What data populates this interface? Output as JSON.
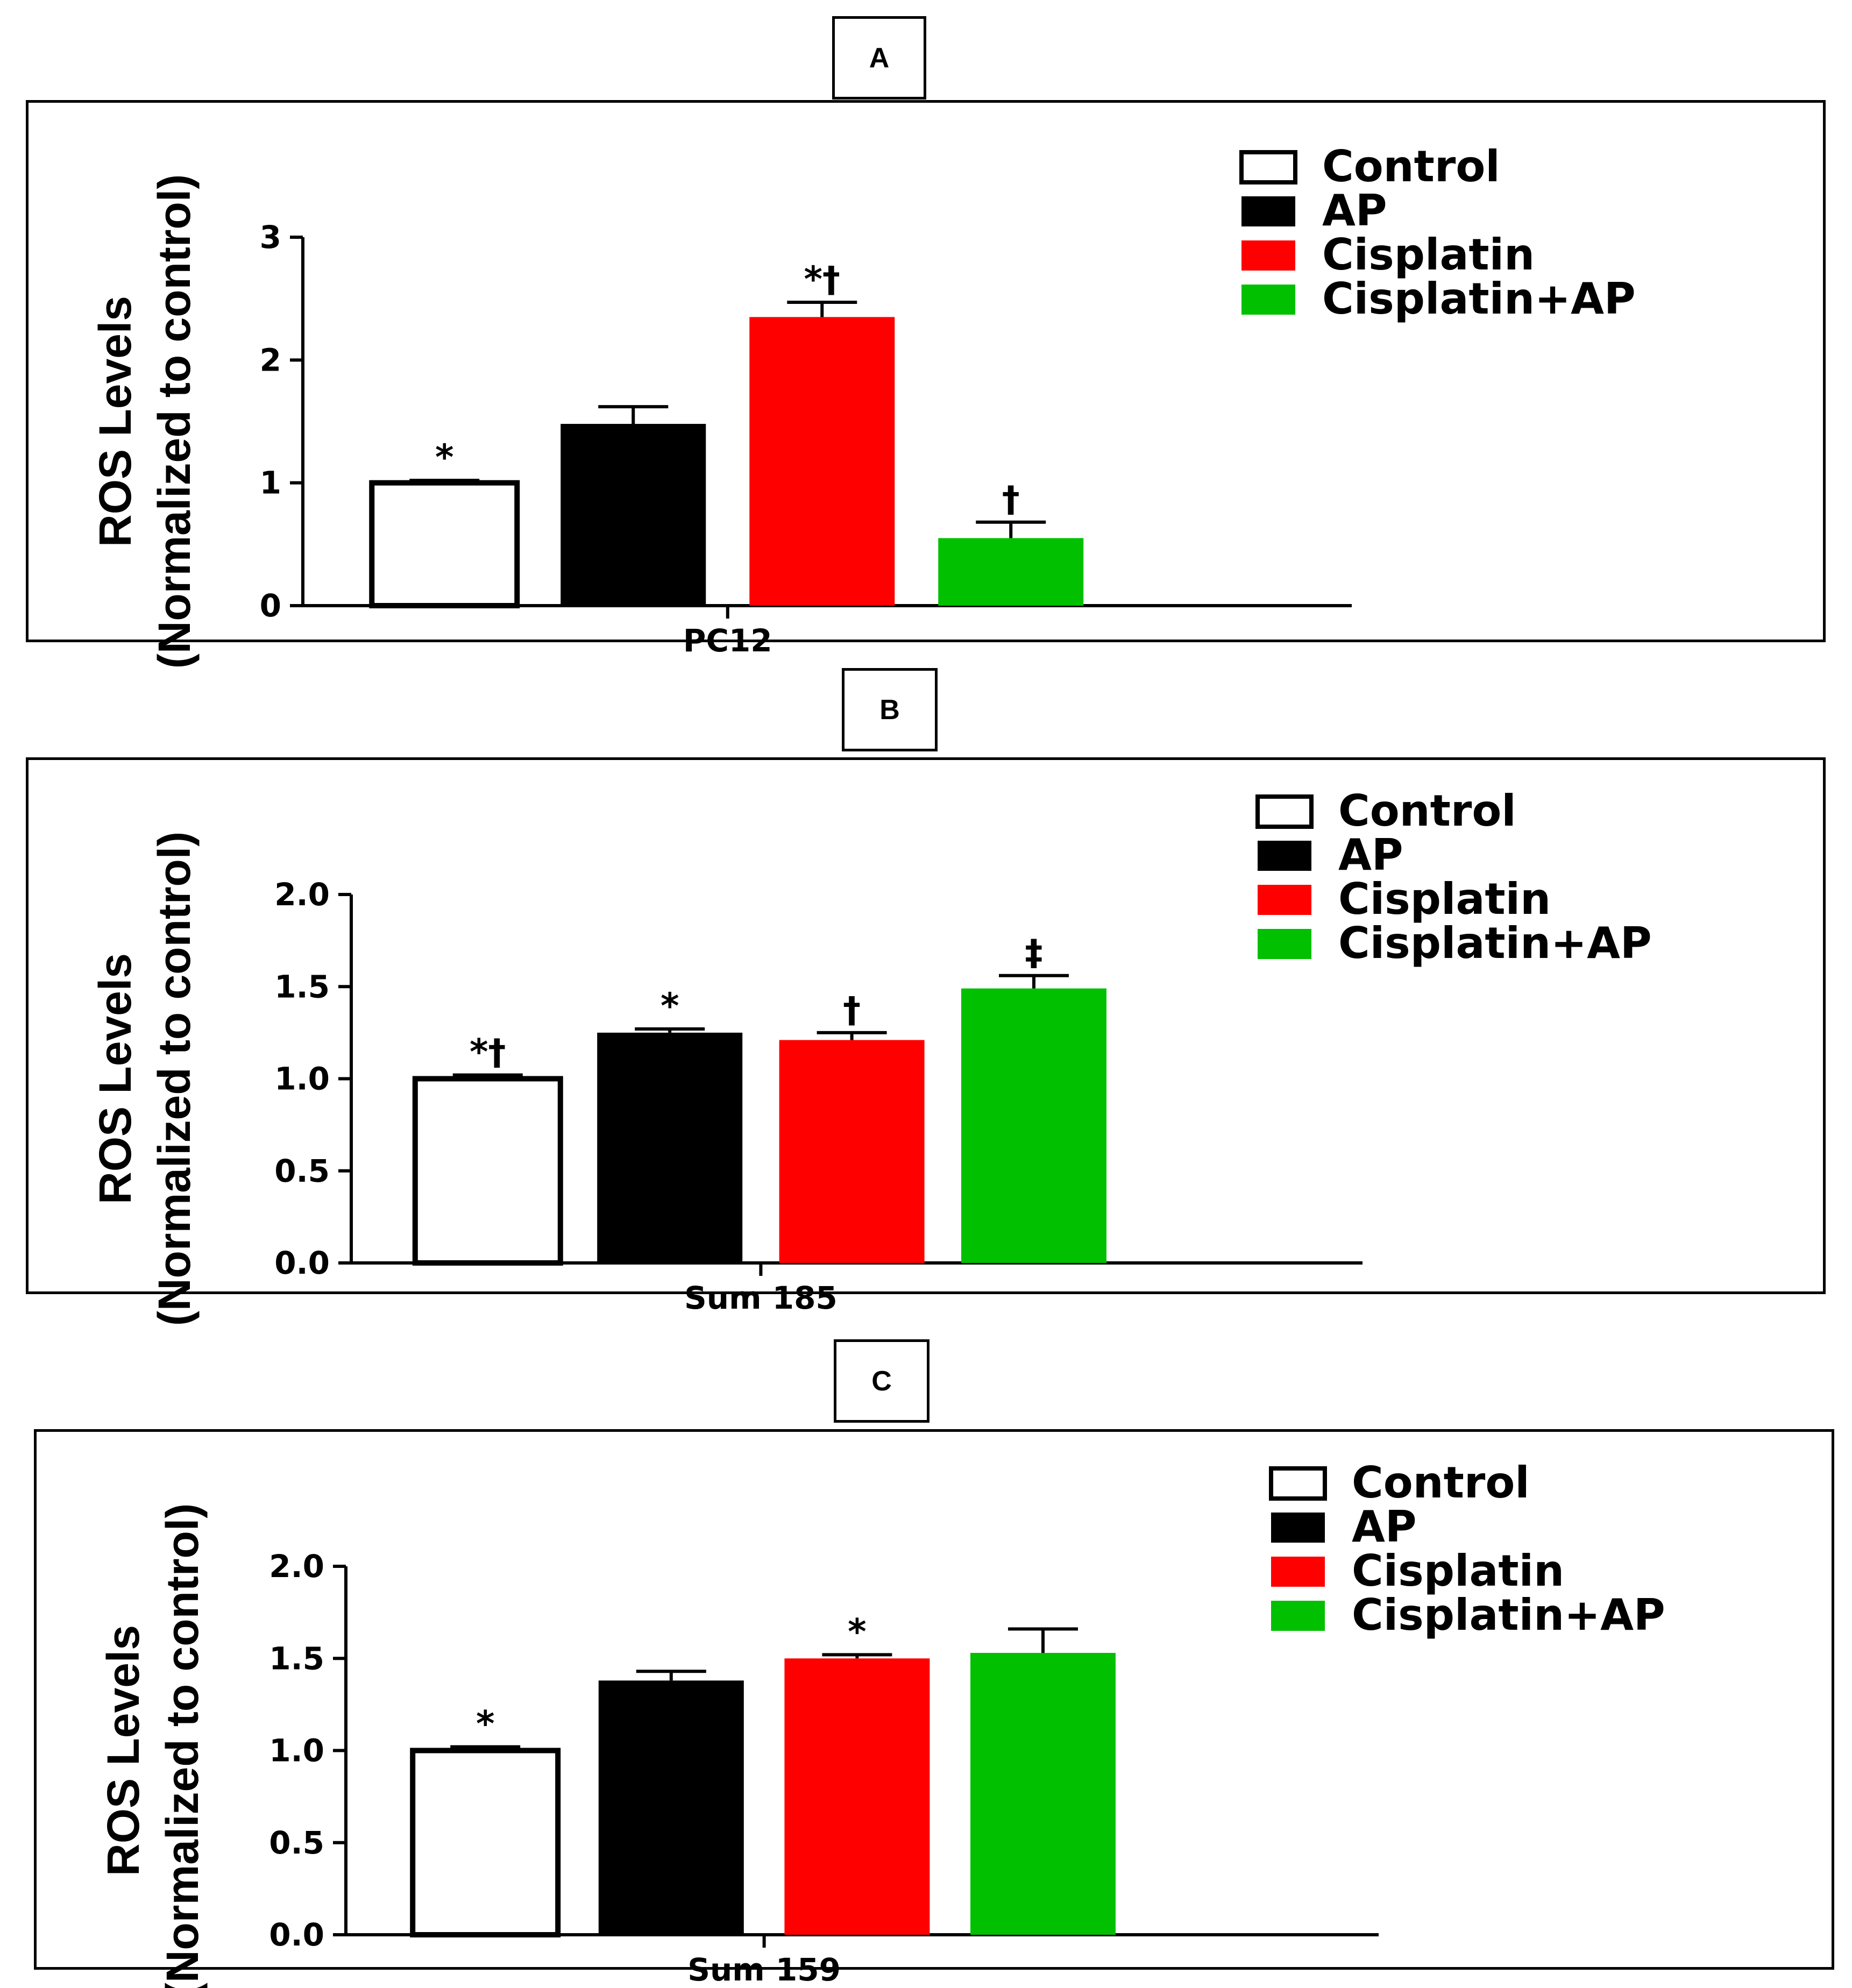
{
  "figure": {
    "legend": [
      {
        "label": "Control",
        "color": "#ffffff"
      },
      {
        "label": "AP",
        "color": "#000000"
      },
      {
        "label": "Cisplatin",
        "color": "#ff0000"
      },
      {
        "label": "Cisplatin+AP",
        "color": "#00c000"
      }
    ],
    "ylabel_line1": "ROS Levels",
    "ylabel_line2": "(Normalized to control)"
  },
  "chart_data": [
    {
      "panel": "A",
      "type": "bar",
      "xlabel": "PC12",
      "ylim": [
        0,
        3
      ],
      "yticks": [
        "0",
        "1",
        "2",
        "3"
      ],
      "categories": [
        "Control",
        "AP",
        "Cisplatin",
        "Cisplatin+AP"
      ],
      "values": [
        1.0,
        1.48,
        2.35,
        0.55
      ],
      "errors": [
        0.02,
        0.14,
        0.12,
        0.13
      ],
      "significance": [
        "*",
        "",
        "*†",
        "†"
      ]
    },
    {
      "panel": "B",
      "type": "bar",
      "xlabel": "Sum 185",
      "ylim": [
        0,
        2.0
      ],
      "yticks": [
        "0.0",
        "0.5",
        "1.0",
        "1.5",
        "2.0"
      ],
      "categories": [
        "Control",
        "AP",
        "Cisplatin",
        "Cisplatin+AP"
      ],
      "values": [
        1.0,
        1.25,
        1.21,
        1.49
      ],
      "errors": [
        0.02,
        0.02,
        0.04,
        0.07
      ],
      "significance": [
        "*†",
        "*",
        "†",
        "‡"
      ]
    },
    {
      "panel": "C",
      "type": "bar",
      "xlabel": "Sum 159",
      "ylim": [
        0,
        2.0
      ],
      "yticks": [
        "0.0",
        "0.5",
        "1.0",
        "1.5",
        "2.0"
      ],
      "categories": [
        "Control",
        "AP",
        "Cisplatin",
        "Cisplatin+AP"
      ],
      "values": [
        1.0,
        1.38,
        1.5,
        1.53
      ],
      "errors": [
        0.02,
        0.05,
        0.02,
        0.13
      ],
      "significance": [
        "*",
        "",
        "*",
        ""
      ]
    }
  ]
}
